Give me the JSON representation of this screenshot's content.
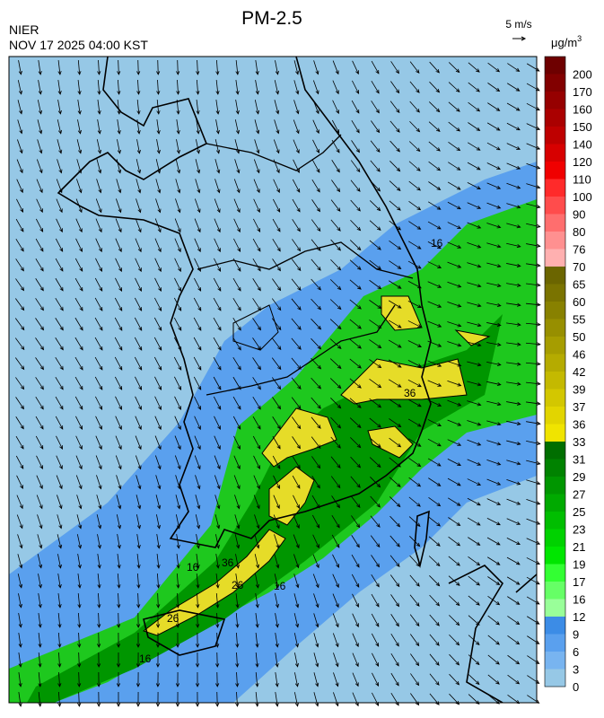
{
  "header": {
    "title": "PM-2.5",
    "agency": "NIER",
    "timestamp": "NOV 17 2025 04:00 KST",
    "wind_scale": "5 m/s",
    "unit": "μg/m",
    "unit_superscript": "3"
  },
  "legend": {
    "levels": [
      200,
      170,
      160,
      150,
      140,
      120,
      110,
      100,
      90,
      80,
      76,
      70,
      65,
      60,
      55,
      50,
      46,
      42,
      39,
      37,
      36,
      33,
      31,
      29,
      27,
      25,
      23,
      21,
      19,
      17,
      16,
      12,
      9,
      6,
      3,
      0
    ],
    "colors": [
      "#6e0000",
      "#820000",
      "#960000",
      "#aa0000",
      "#be0000",
      "#d70000",
      "#f00000",
      "#ff2a2a",
      "#ff4c4c",
      "#ff6e6e",
      "#ff9090",
      "#ffb0b0",
      "#6b6500",
      "#7a7300",
      "#888100",
      "#978f00",
      "#a69d00",
      "#b5ab00",
      "#c4b900",
      "#d3c700",
      "#e2d500",
      "#f0e400",
      "#006e00",
      "#008200",
      "#009600",
      "#00aa00",
      "#00be00",
      "#00d200",
      "#00e600",
      "#33ff33",
      "#66ff66",
      "#99ff99",
      "#3c8ce6",
      "#5aa0ee",
      "#78b4f0",
      "#96c8e6"
    ]
  },
  "contour_labels": [
    "16",
    "36",
    "26",
    "16",
    "26",
    "36",
    "16",
    "16"
  ]
}
